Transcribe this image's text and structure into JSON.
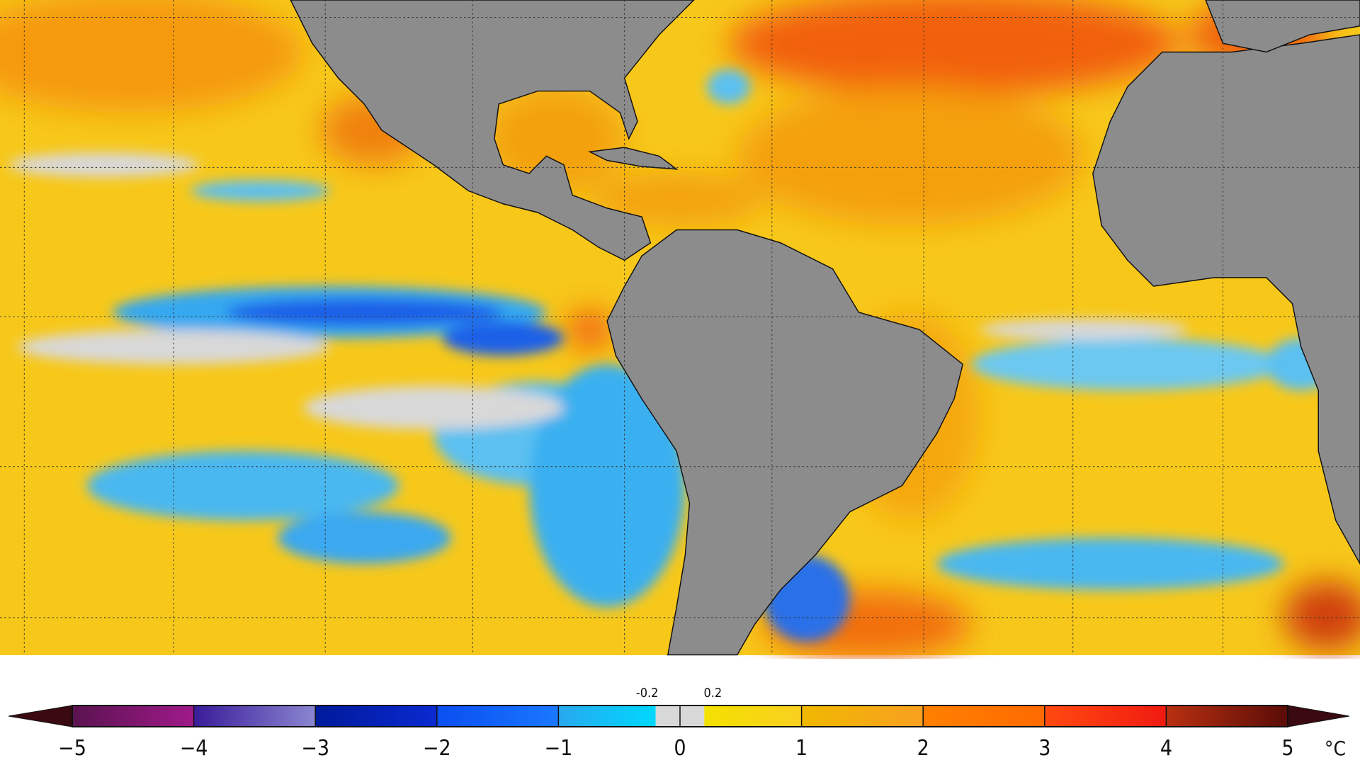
{
  "map": {
    "ocean_base_color": "#f7c81a",
    "land_color": "#8c8c8c",
    "grid": "dotted"
  },
  "colorbar": {
    "unit": "°C",
    "min": -5,
    "max": 5,
    "tick_labels": [
      "−5",
      "−4",
      "−3",
      "−2",
      "−1",
      "0",
      "1",
      "2",
      "3",
      "4",
      "5"
    ],
    "tick_values": [
      -5,
      -4,
      -3,
      -2,
      -1,
      0,
      1,
      2,
      3,
      4,
      5
    ],
    "small_labels": [
      {
        "value": -0.2,
        "text": "-0.2"
      },
      {
        "value": 0.2,
        "text": "0.2"
      }
    ],
    "under_color": "#3a0a10",
    "over_color": "#3a0a10",
    "segments": [
      {
        "from": -5,
        "to": -4,
        "c1": "#5a1350",
        "c2": "#a01a8a"
      },
      {
        "from": -4,
        "to": -3,
        "c1": "#3a1c9a",
        "c2": "#8a86d0"
      },
      {
        "from": -3,
        "to": -2,
        "c1": "#001a9a",
        "c2": "#0a2ad0"
      },
      {
        "from": -2,
        "to": -1,
        "c1": "#0a4ef0",
        "c2": "#1a78ff"
      },
      {
        "from": -1,
        "to": -0.2,
        "c1": "#28a8f0",
        "c2": "#00d8ff"
      },
      {
        "from": -0.2,
        "to": 0.2,
        "c1": "#d8d8d8",
        "c2": "#d8d8d8"
      },
      {
        "from": 0.2,
        "to": 1,
        "c1": "#f4e000",
        "c2": "#f8d020"
      },
      {
        "from": 1,
        "to": 2,
        "c1": "#f0b800",
        "c2": "#f8a020"
      },
      {
        "from": 2,
        "to": 3,
        "c1": "#ff8000",
        "c2": "#ff6a00"
      },
      {
        "from": 3,
        "to": 4,
        "c1": "#ff4a10",
        "c2": "#f01a10"
      },
      {
        "from": 4,
        "to": 5,
        "c1": "#b83010",
        "c2": "#5a0c08"
      }
    ]
  }
}
